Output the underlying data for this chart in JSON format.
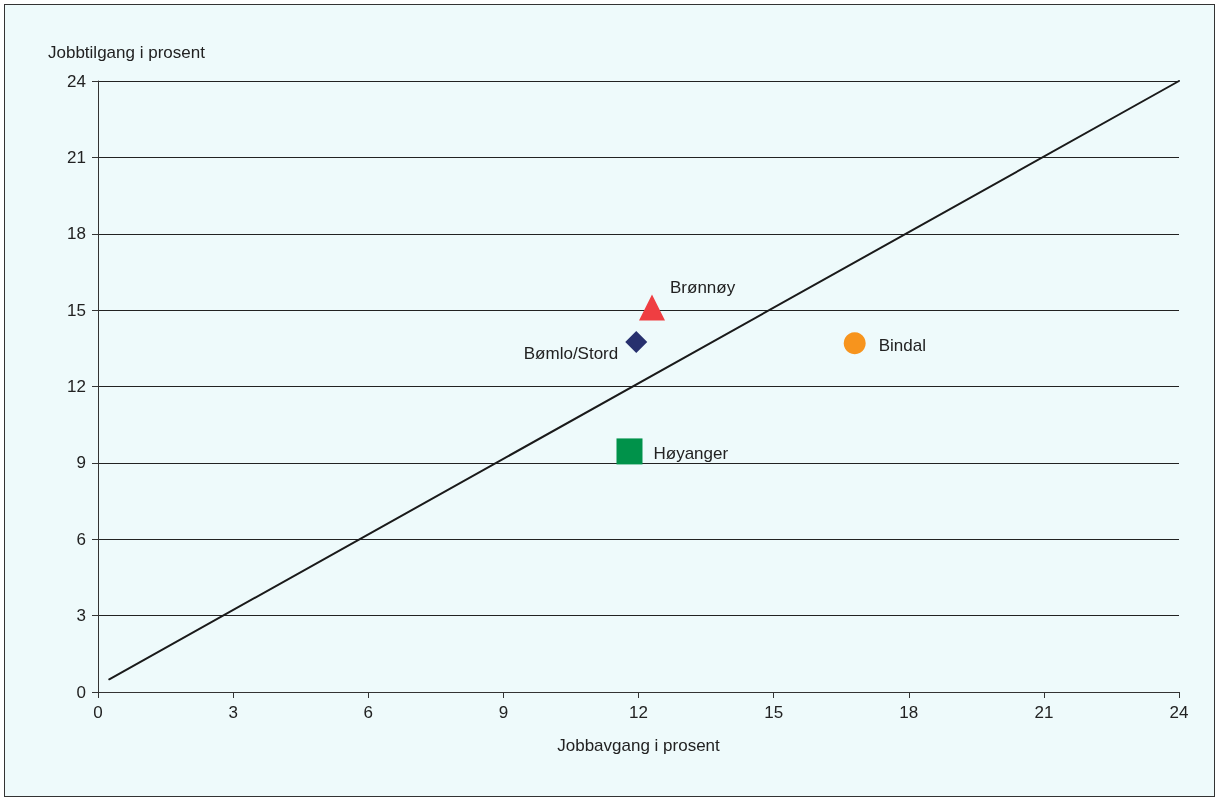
{
  "chart_data": {
    "type": "scatter",
    "xlabel": "Jobbavgang i prosent",
    "ylabel": "Jobbtilgang i prosent",
    "xlim": [
      0,
      24
    ],
    "xticks": [
      0,
      3,
      6,
      9,
      12,
      15,
      18,
      21,
      24
    ],
    "ylim": [
      0,
      24
    ],
    "yticks": [
      0,
      3,
      6,
      9,
      12,
      15,
      18,
      21,
      24
    ],
    "grid": "y",
    "legend": false,
    "series": [
      {
        "type": "line",
        "color": "#1a1a1a",
        "x": [
          0.25,
          24
        ],
        "values": [
          0.5,
          24
        ],
        "marker": "none",
        "line_style": "solid"
      },
      {
        "name": "Brønnøy",
        "color": "#ef3e42",
        "x": [
          12.3
        ],
        "values": [
          15.1
        ],
        "marker": "triangle"
      },
      {
        "name": "Bømlo/Stord",
        "color": "#27306e",
        "x": [
          11.95
        ],
        "values": [
          13.75
        ],
        "marker": "diamond"
      },
      {
        "name": "Bindal",
        "color": "#f7941d",
        "x": [
          16.8
        ],
        "values": [
          13.7
        ],
        "marker": "circle"
      },
      {
        "name": "Høyanger",
        "color": "#00924a",
        "x": [
          11.8
        ],
        "values": [
          9.45
        ],
        "marker": "square"
      }
    ]
  }
}
